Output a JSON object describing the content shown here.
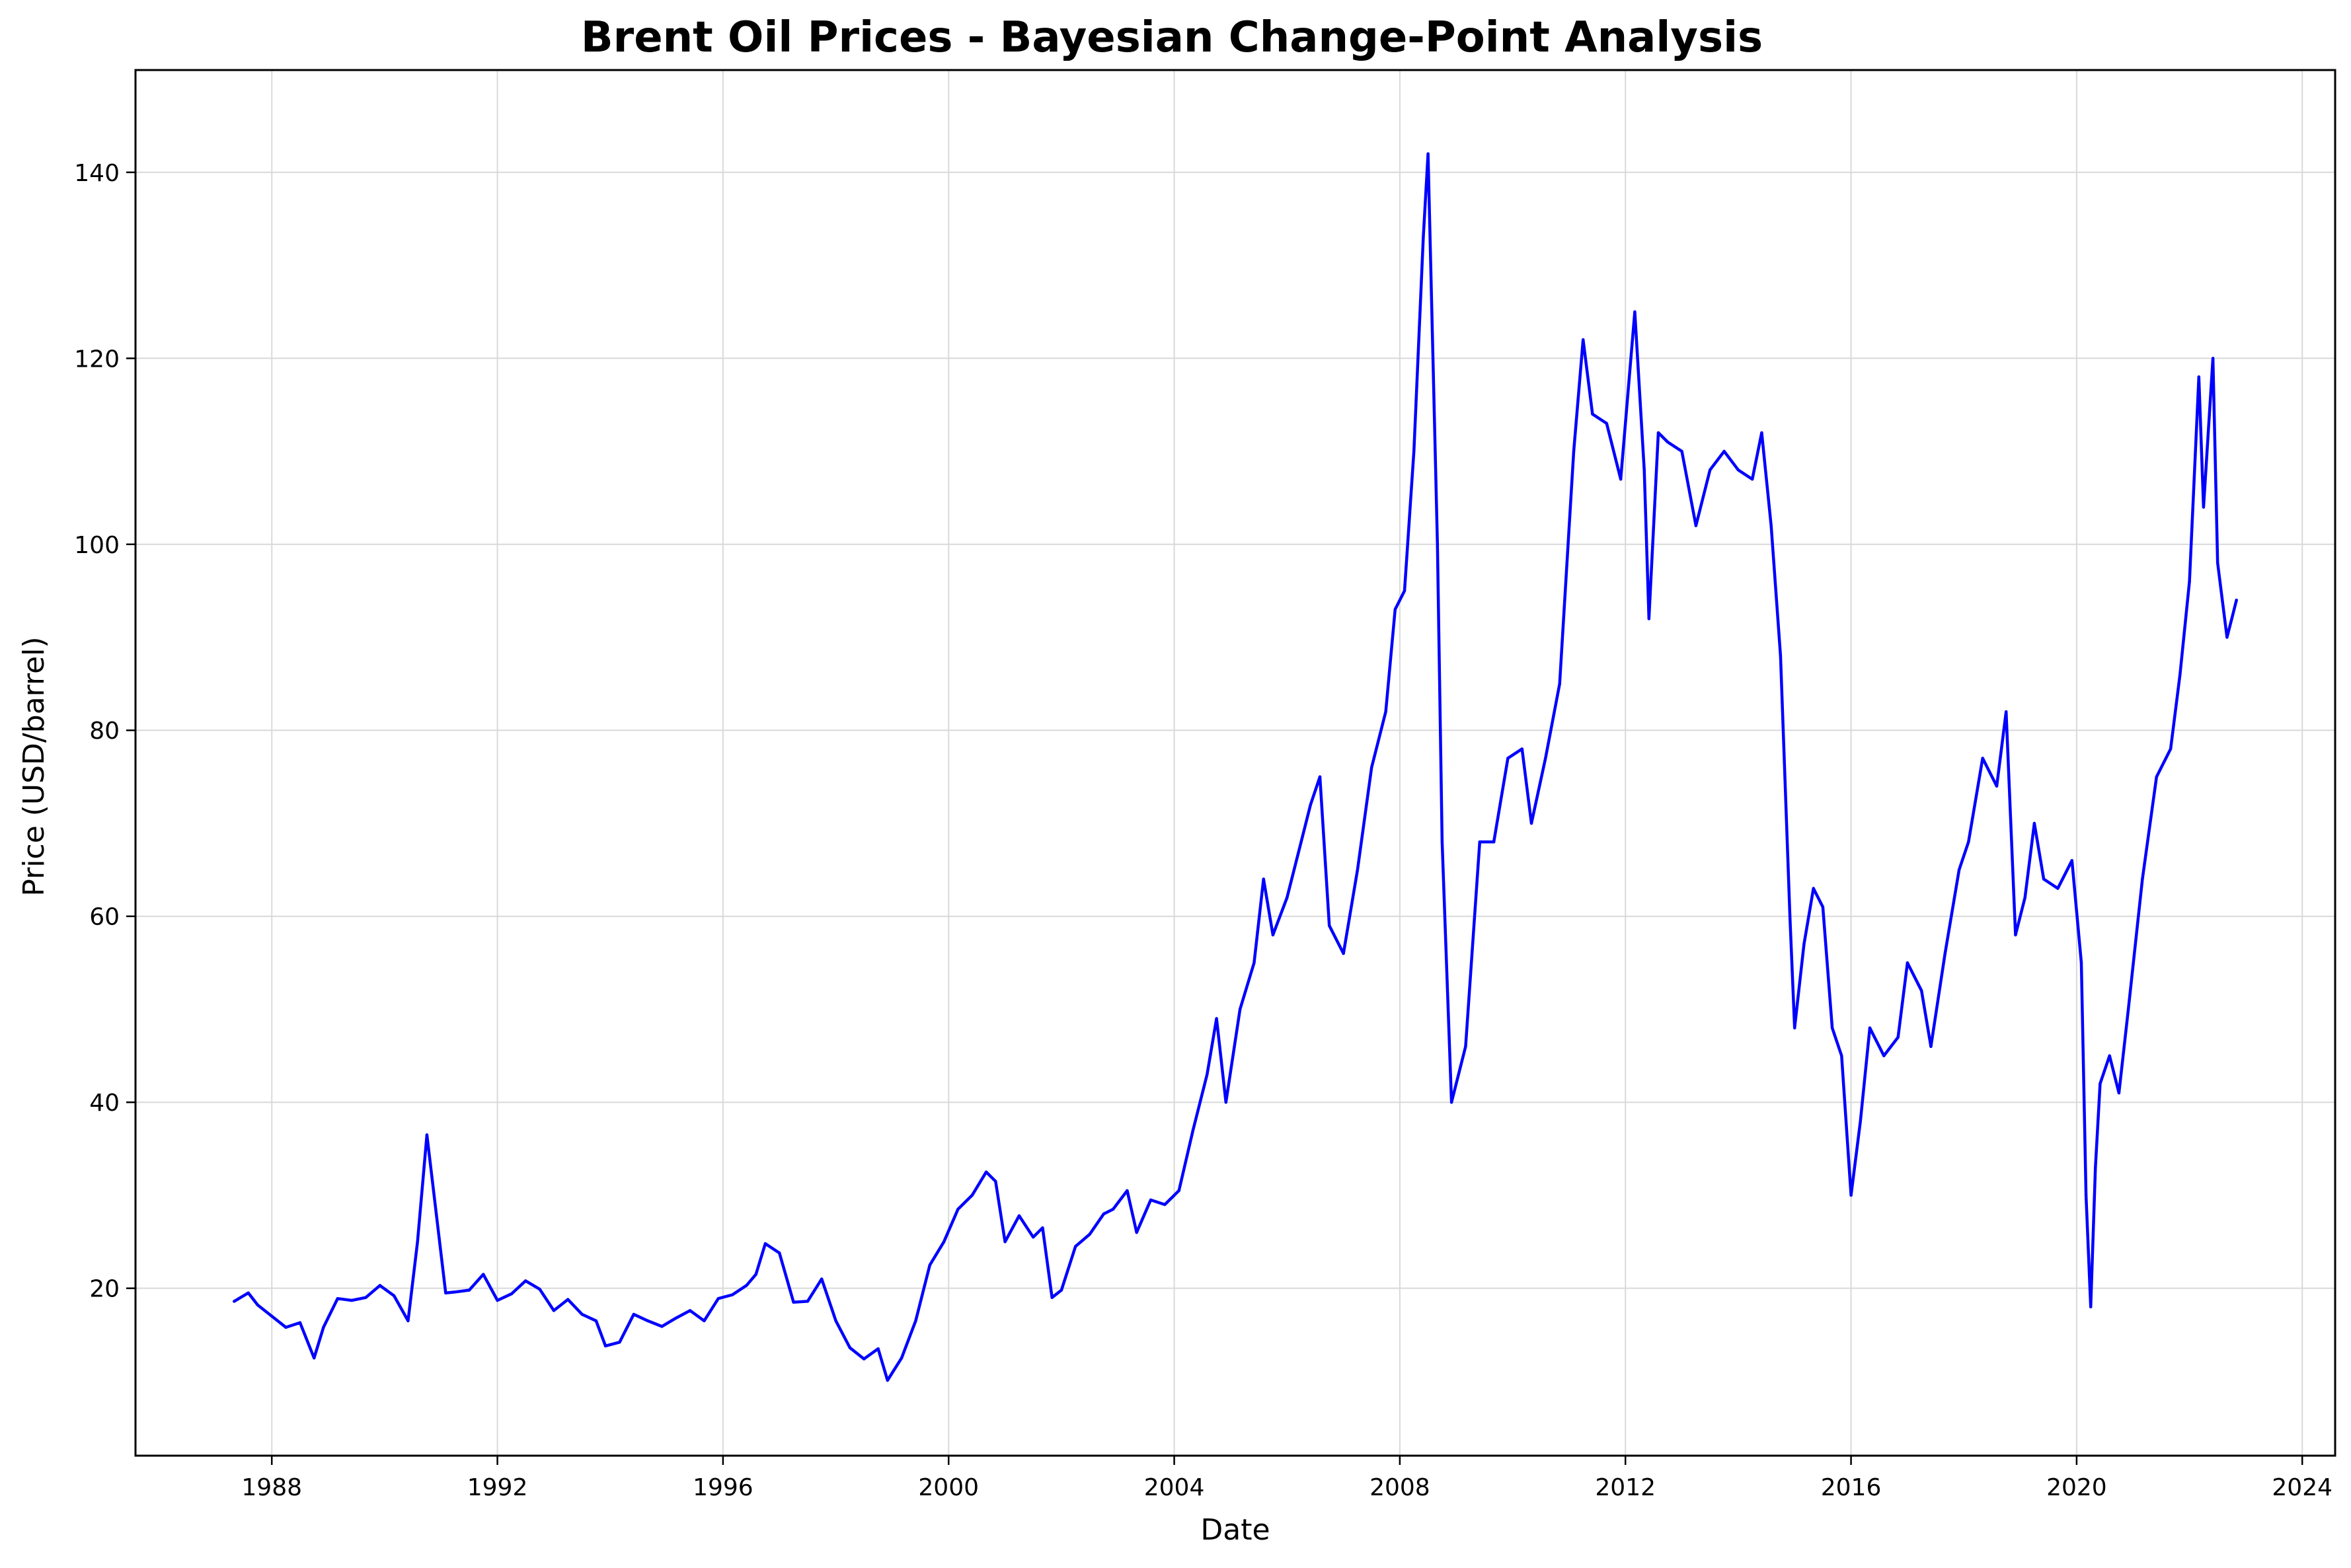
{
  "chart_data": {
    "type": "line",
    "title": "Brent Oil Prices - Bayesian Change-Point Analysis",
    "xlabel": "Date",
    "ylabel": "Price (USD/barrel)",
    "x_ticks": [
      "1988",
      "1992",
      "1996",
      "2000",
      "2004",
      "2008",
      "2012",
      "2016",
      "2020",
      "2024"
    ],
    "y_ticks": [
      "20",
      "40",
      "60",
      "80",
      "100",
      "120",
      "140"
    ],
    "xlim": [
      "1985-08",
      "2024-08"
    ],
    "ylim": [
      2,
      151
    ],
    "grid": true,
    "colors": {
      "series": "#0000ff",
      "grid": "#d9d9d9",
      "axes": "#000000"
    },
    "series": [
      {
        "x": [
          "1987-05",
          "1987-08",
          "1987-10",
          "1988-01",
          "1988-04",
          "1988-07",
          "1988-10",
          "1988-12",
          "1989-03",
          "1989-06",
          "1989-09",
          "1989-12",
          "1990-03",
          "1990-06",
          "1990-08",
          "1990-10",
          "1990-12",
          "1991-02",
          "1991-04",
          "1991-07",
          "1991-10",
          "1992-01",
          "1992-04",
          "1992-07",
          "1992-10",
          "1993-01",
          "1993-04",
          "1993-07",
          "1993-10",
          "1993-12",
          "1994-03",
          "1994-06",
          "1994-09",
          "1994-12",
          "1995-03",
          "1995-06",
          "1995-09",
          "1995-12",
          "1996-03",
          "1996-06",
          "1996-08",
          "1996-10",
          "1997-01",
          "1997-04",
          "1997-07",
          "1997-10",
          "1998-01",
          "1998-04",
          "1998-07",
          "1998-10",
          "1998-12",
          "1999-03",
          "1999-06",
          "1999-09",
          "1999-12",
          "2000-03",
          "2000-06",
          "2000-09",
          "2000-11",
          "2001-01",
          "2001-04",
          "2001-07",
          "2001-09",
          "2001-11",
          "2002-01",
          "2002-04",
          "2002-07",
          "2002-10",
          "2002-12",
          "2003-03",
          "2003-05",
          "2003-08",
          "2003-11",
          "2004-02",
          "2004-05",
          "2004-08",
          "2004-10",
          "2004-12",
          "2005-03",
          "2005-06",
          "2005-08",
          "2005-10",
          "2006-01",
          "2006-04",
          "2006-06",
          "2006-08",
          "2006-10",
          "2007-01",
          "2007-04",
          "2007-07",
          "2007-10",
          "2007-12",
          "2008-02",
          "2008-04",
          "2008-06",
          "2008-07",
          "2008-09",
          "2008-10",
          "2008-12",
          "2009-03",
          "2009-06",
          "2009-09",
          "2009-12",
          "2010-03",
          "2010-05",
          "2010-08",
          "2010-11",
          "2011-02",
          "2011-04",
          "2011-06",
          "2011-09",
          "2011-12",
          "2012-03",
          "2012-05",
          "2012-06",
          "2012-08",
          "2012-10",
          "2013-01",
          "2013-04",
          "2013-07",
          "2013-10",
          "2014-01",
          "2014-04",
          "2014-06",
          "2014-08",
          "2014-10",
          "2014-12",
          "2015-01",
          "2015-03",
          "2015-05",
          "2015-07",
          "2015-09",
          "2015-11",
          "2016-01",
          "2016-03",
          "2016-05",
          "2016-08",
          "2016-11",
          "2017-01",
          "2017-04",
          "2017-06",
          "2017-09",
          "2017-12",
          "2018-02",
          "2018-05",
          "2018-08",
          "2018-10",
          "2018-12",
          "2019-02",
          "2019-04",
          "2019-06",
          "2019-09",
          "2019-12",
          "2020-02",
          "2020-03",
          "2020-04",
          "2020-05",
          "2020-06",
          "2020-08",
          "2020-10",
          "2020-12",
          "2021-03",
          "2021-06",
          "2021-09",
          "2021-11",
          "2022-01",
          "2022-03",
          "2022-04",
          "2022-06",
          "2022-07",
          "2022-09",
          "2022-10",
          "2022-11"
        ],
        "y": [
          18.6,
          19.5,
          18.2,
          17.0,
          15.8,
          16.3,
          12.5,
          15.8,
          18.9,
          18.7,
          19.0,
          20.3,
          19.2,
          16.5,
          25.0,
          36.5,
          28.0,
          19.5,
          19.6,
          19.8,
          21.5,
          18.7,
          19.4,
          20.8,
          19.9,
          17.6,
          18.8,
          17.2,
          16.5,
          13.8,
          14.2,
          17.2,
          16.5,
          15.9,
          16.8,
          17.6,
          16.5,
          18.9,
          19.3,
          20.3,
          21.5,
          24.8,
          23.8,
          18.5,
          18.6,
          21.0,
          16.5,
          13.6,
          12.4,
          13.5,
          10.1,
          12.5,
          16.5,
          22.5,
          25.0,
          28.5,
          30.0,
          32.5,
          31.5,
          25.0,
          27.8,
          25.5,
          26.5,
          19.0,
          19.8,
          24.5,
          25.8,
          28.0,
          28.5,
          30.5,
          26.0,
          29.5,
          29.0,
          30.5,
          37.0,
          43.0,
          49.0,
          40.0,
          50.0,
          55.0,
          64.0,
          58.0,
          62.0,
          68.0,
          72.0,
          75.0,
          59.0,
          56.0,
          65.0,
          76.0,
          82.0,
          93.0,
          95.0,
          110.0,
          133.0,
          142.0,
          100.0,
          68.0,
          40.0,
          46.0,
          68.0,
          68.0,
          77.0,
          78.0,
          70.0,
          77.0,
          85.0,
          110.0,
          122.0,
          114.0,
          113.0,
          107.0,
          125.0,
          108.0,
          92.0,
          112.0,
          111.0,
          110.0,
          102.0,
          108.0,
          110.0,
          108.0,
          107.0,
          112.0,
          102.0,
          88.0,
          60.0,
          48.0,
          57.0,
          63.0,
          61.0,
          48.0,
          45.0,
          30.0,
          38.0,
          48.0,
          45.0,
          47.0,
          55.0,
          52.0,
          46.0,
          56.0,
          65.0,
          68.0,
          77.0,
          74.0,
          82.0,
          58.0,
          62.0,
          70.0,
          64.0,
          63.0,
          66.0,
          55.0,
          30.0,
          18.0,
          33.0,
          42.0,
          45.0,
          41.0,
          50.0,
          64.0,
          75.0,
          78.0,
          86.0,
          96.0,
          118.0,
          104.0,
          120.0,
          98.0,
          90.0,
          92.0,
          94.0
        ]
      }
    ]
  }
}
